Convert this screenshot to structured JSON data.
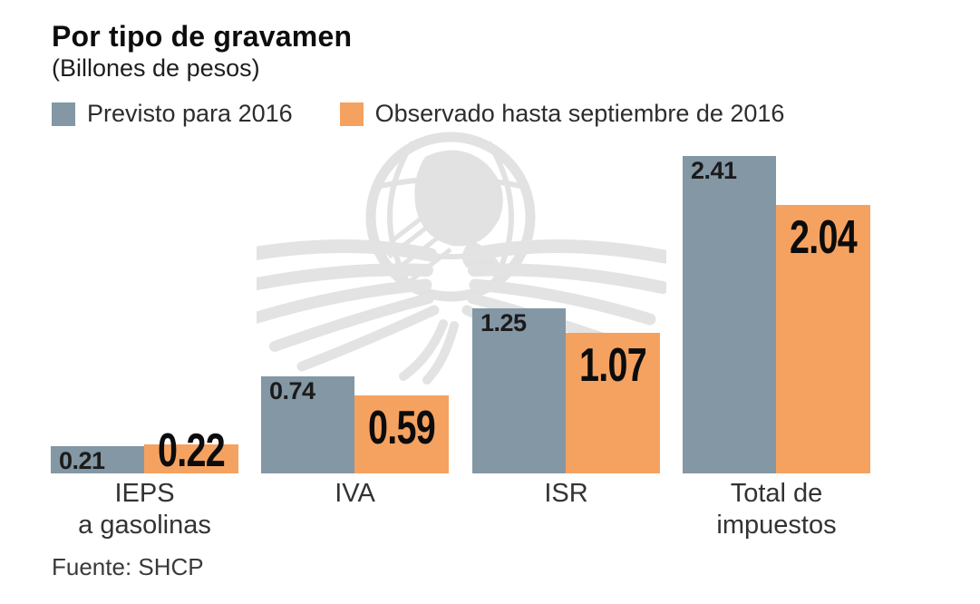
{
  "chart": {
    "title": "Por tipo de gravamen",
    "subtitle": "(Billones de pesos)",
    "source": "Fuente: SHCP"
  },
  "chart_data": {
    "type": "bar",
    "title": "Por tipo de gravamen",
    "subtitle": "(Billones de pesos)",
    "unit_note": "Billones de pesos",
    "categories": [
      "IEPS\na gasolinas",
      "IVA",
      "ISR",
      "Total de\nimpuestos"
    ],
    "series": [
      {
        "name": "Previsto para 2016",
        "color": "#8397a5",
        "values": [
          0.21,
          0.74,
          1.25,
          2.41
        ]
      },
      {
        "name": "Observado hasta septiembre de 2016",
        "color": "#f5a261",
        "values": [
          0.22,
          0.59,
          1.07,
          2.04
        ]
      }
    ],
    "value_labels": "on-bars",
    "legend_position": "top-left",
    "grid": false,
    "axes": "none",
    "ylim": [
      0,
      2.5
    ],
    "source": "Fuente: SHCP",
    "watermark": "eagle-globe newspaper logo"
  }
}
